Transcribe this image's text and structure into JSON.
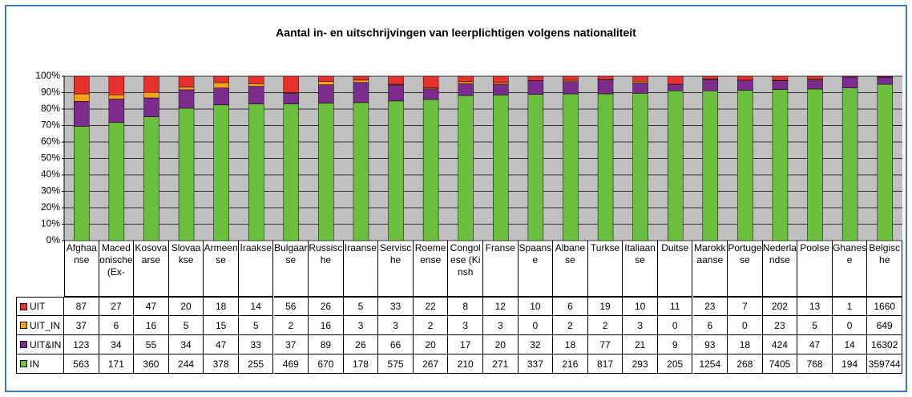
{
  "chart_data": {
    "type": "bar",
    "stacked": "percent",
    "title": "Aantal in- en uitschrijvingen van leerplichtigen volgens nationaliteit",
    "categories": [
      "Afghaanse",
      "Macedonische (Ex-",
      "Kosovaarse",
      "Slovaakse",
      "Armeense",
      "Iraakse",
      "Bulgaarse",
      "Russische",
      "Iraanse",
      "Servische",
      "Roemeense",
      "Congolese (Kinsh",
      "Franse",
      "Spaanse",
      "Albanese",
      "Turkse",
      "Italiaanse",
      "Duitse",
      "Marokkaanse",
      "Portugese",
      "Nederlandse",
      "Poolse",
      "Ghanese",
      "Belgische"
    ],
    "series": [
      {
        "name": "UIT",
        "color": "#e8302c",
        "values": [
          87,
          27,
          47,
          20,
          18,
          14,
          56,
          26,
          5,
          33,
          22,
          8,
          12,
          10,
          6,
          19,
          10,
          11,
          23,
          7,
          202,
          13,
          1,
          1660
        ]
      },
      {
        "name": "UIT_IN",
        "color": "#f7a21c",
        "values": [
          37,
          6,
          16,
          5,
          15,
          5,
          2,
          16,
          3,
          3,
          2,
          3,
          3,
          0,
          2,
          2,
          3,
          0,
          6,
          0,
          23,
          5,
          0,
          649
        ]
      },
      {
        "name": "UIT&IN",
        "color": "#7b2c8c",
        "values": [
          123,
          34,
          55,
          34,
          47,
          33,
          37,
          89,
          26,
          66,
          20,
          17,
          20,
          32,
          18,
          77,
          21,
          9,
          93,
          18,
          424,
          47,
          14,
          16302
        ]
      },
      {
        "name": "IN",
        "color": "#6abf3c",
        "values": [
          563,
          171,
          360,
          244,
          378,
          255,
          469,
          670,
          178,
          575,
          267,
          210,
          271,
          337,
          216,
          817,
          293,
          205,
          1254,
          268,
          7405,
          768,
          194,
          359744
        ]
      }
    ],
    "ylim": [
      0,
      100
    ],
    "yticks": [
      {
        "value": 0,
        "label": "0%"
      },
      {
        "value": 10,
        "label": "10%"
      },
      {
        "value": 20,
        "label": "20%"
      },
      {
        "value": 30,
        "label": "30%"
      },
      {
        "value": 40,
        "label": "40%"
      },
      {
        "value": 50,
        "label": "50%"
      },
      {
        "value": 60,
        "label": "60%"
      },
      {
        "value": 70,
        "label": "70%"
      },
      {
        "value": 80,
        "label": "80%"
      },
      {
        "value": 90,
        "label": "90%"
      },
      {
        "value": 100,
        "label": "100%"
      }
    ],
    "grid": true,
    "plot_background": "#c0c0c0"
  }
}
